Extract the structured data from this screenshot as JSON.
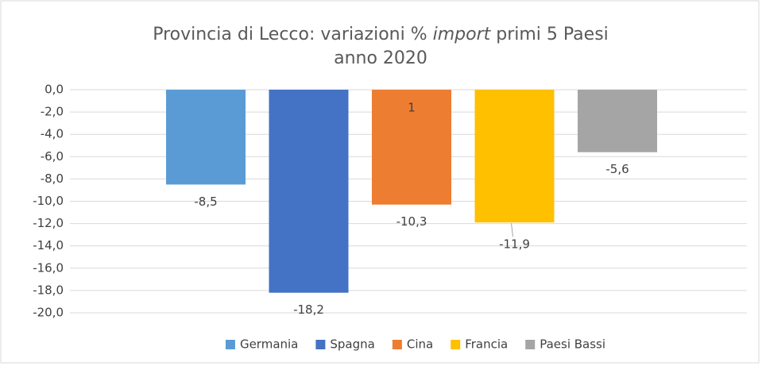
{
  "chart_data": {
    "type": "bar",
    "title_before": "Provincia di Lecco: variazioni %",
    "title_italic": "import",
    "title_after": "primi 5 Paesi",
    "subtitle": "anno 2020",
    "series": [
      {
        "name": "Germania",
        "color": "#5b9bd5",
        "values": [
          -8.5
        ],
        "value_labels": [
          "-8,5"
        ]
      },
      {
        "name": "Spagna",
        "color": "#4472c4",
        "values": [
          -18.2
        ],
        "value_labels": [
          "-18,2"
        ]
      },
      {
        "name": "Cina",
        "color": "#ed7d31",
        "values": [
          -10.3
        ],
        "value_labels": [
          "-10,3"
        ]
      },
      {
        "name": "Francia",
        "color": "#ffc000",
        "values": [
          -11.9
        ],
        "value_labels": [
          "-11,9"
        ]
      },
      {
        "name": "Paesi Bassi",
        "color": "#a5a5a5",
        "values": [
          -5.6
        ],
        "value_labels": [
          "-5,6"
        ]
      }
    ],
    "annotation": "1",
    "ylim": [
      -20,
      0
    ],
    "yticks": [
      {
        "value": 0,
        "label": "0,0"
      },
      {
        "value": -2,
        "label": "-2,0"
      },
      {
        "value": -4,
        "label": "-4,0"
      },
      {
        "value": -6,
        "label": "-6,0"
      },
      {
        "value": -8,
        "label": "-8,0"
      },
      {
        "value": -10,
        "label": "-10,0"
      },
      {
        "value": -12,
        "label": "-12,0"
      },
      {
        "value": -14,
        "label": "-14,0"
      },
      {
        "value": -16,
        "label": "-16,0"
      },
      {
        "value": -18,
        "label": "-18,0"
      },
      {
        "value": -20,
        "label": "-20,0"
      }
    ],
    "grid": true,
    "legend": "bottom"
  }
}
